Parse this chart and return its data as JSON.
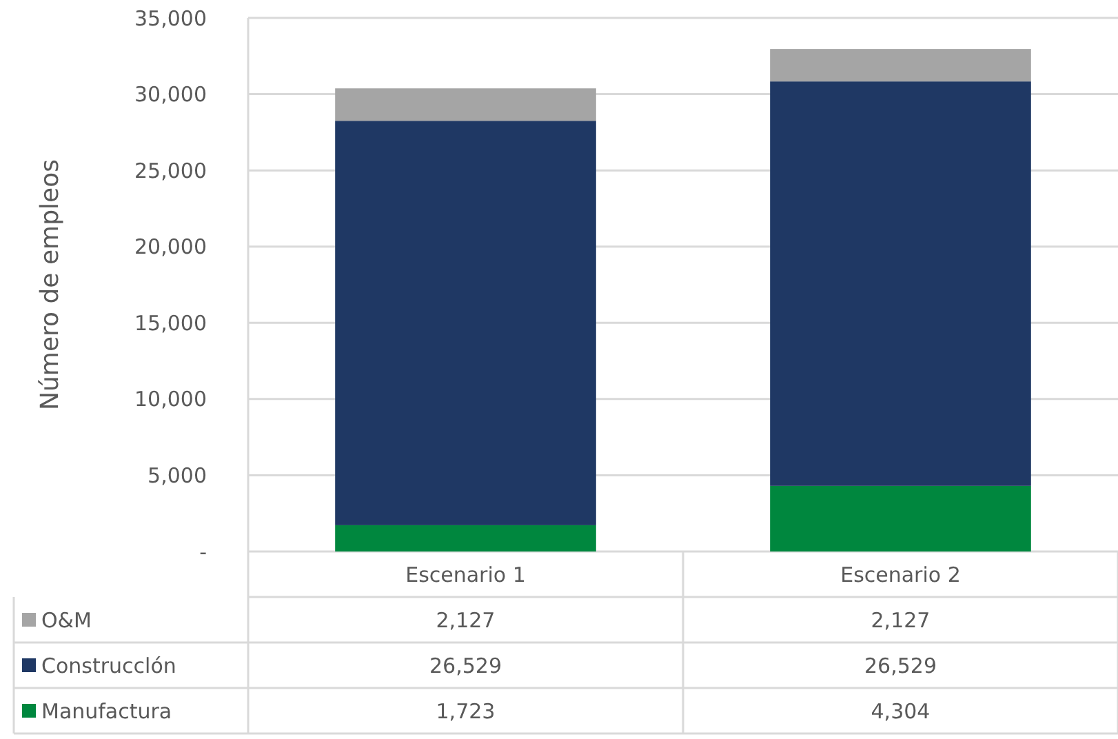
{
  "chart_data": {
    "type": "bar",
    "stacked": true,
    "ylabel": "Número de empleos",
    "categories": [
      "Escenario 1",
      "Escenario 2"
    ],
    "series": [
      {
        "name": "Manufactura",
        "color": "#00873e",
        "values": [
          1723,
          4304
        ],
        "value_labels": [
          "1,723",
          "4,304"
        ]
      },
      {
        "name": "Construcclón",
        "color": "#1f3864",
        "values": [
          26529,
          26529
        ],
        "value_labels": [
          "26,529",
          "26,529"
        ]
      },
      {
        "name": "O&M",
        "color": "#a5a5a5",
        "values": [
          2127,
          2127
        ],
        "value_labels": [
          "2,127",
          "2,127"
        ]
      }
    ],
    "ylim": [
      0,
      35000
    ],
    "yticks": [
      {
        "value": 0,
        "label": "-"
      },
      {
        "value": 5000,
        "label": "5,000"
      },
      {
        "value": 10000,
        "label": "10,000"
      },
      {
        "value": 15000,
        "label": "15,000"
      },
      {
        "value": 20000,
        "label": "20,000"
      },
      {
        "value": 25000,
        "label": "25,000"
      },
      {
        "value": 30000,
        "label": "30,000"
      },
      {
        "value": 35000,
        "label": "35,000"
      }
    ],
    "grid": "y",
    "legend": "bottom"
  }
}
